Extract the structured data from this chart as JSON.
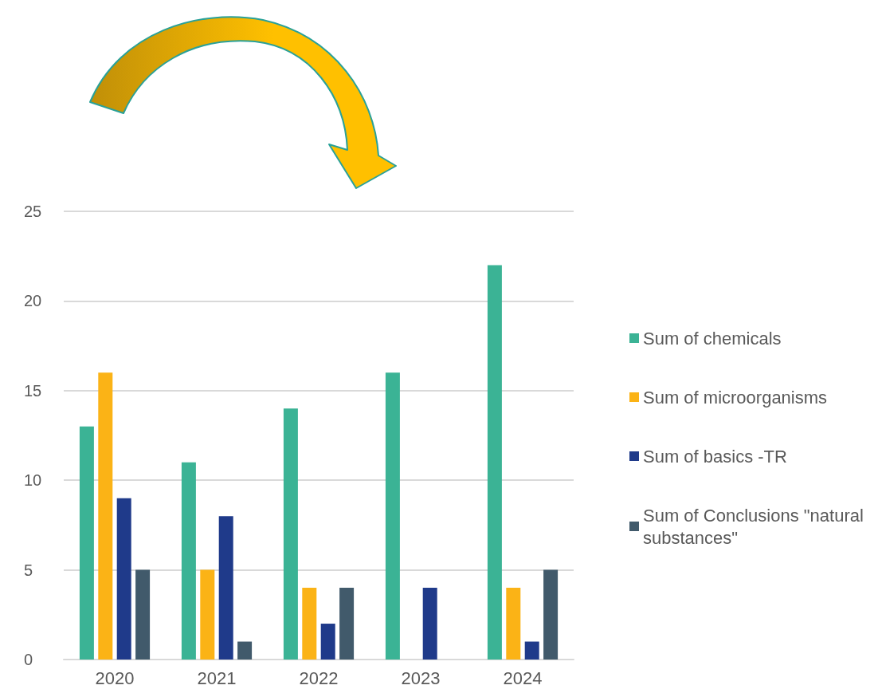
{
  "chart_data": {
    "type": "bar",
    "categories": [
      "2020",
      "2021",
      "2022",
      "2023",
      "2024"
    ],
    "series": [
      {
        "name": "Sum of chemicals",
        "color": "#3bb395",
        "values": [
          13,
          11,
          14,
          16,
          22
        ]
      },
      {
        "name": "Sum of microorganisms",
        "color": "#fbb316",
        "values": [
          16,
          5,
          4,
          0,
          4
        ]
      },
      {
        "name": "Sum of basics -TR",
        "color": "#1f3a8a",
        "values": [
          9,
          8,
          2,
          4,
          1
        ]
      },
      {
        "name": "Sum of Conclusions \"natural substances\"",
        "color": "#415a6b",
        "values": [
          5,
          1,
          4,
          0,
          5
        ]
      }
    ],
    "ylim": [
      0,
      25
    ],
    "yticks": [
      0,
      5,
      10,
      15,
      20,
      25
    ],
    "grid": "y",
    "legend": "right"
  }
}
